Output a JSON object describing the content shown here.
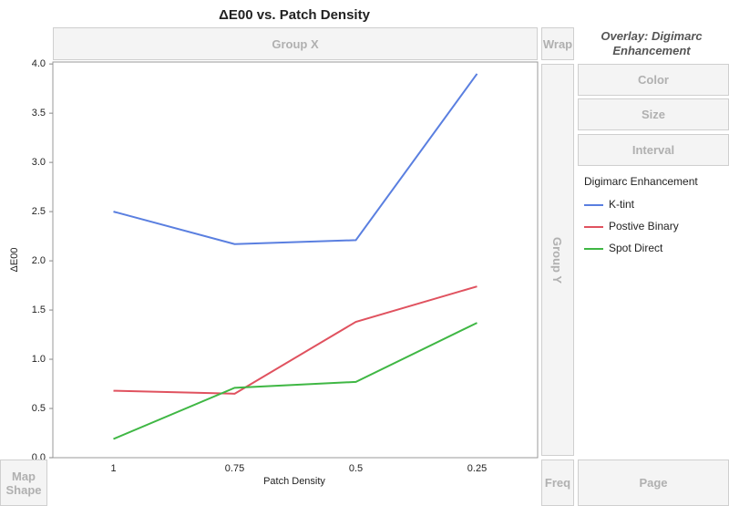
{
  "chart_data": {
    "type": "line",
    "title": "ΔE00 vs. Patch Density",
    "x_label": "Patch Density",
    "y_label": "ΔE00",
    "categories": [
      "1",
      "0.75",
      "0.5",
      "0.25"
    ],
    "series": [
      {
        "name": "K-tint",
        "color": "#5a7fe0",
        "values": [
          2.5,
          2.17,
          2.21,
          3.9
        ]
      },
      {
        "name": "Postive Binary",
        "color": "#e0525f",
        "values": [
          0.68,
          0.65,
          1.38,
          1.74
        ]
      },
      {
        "name": "Spot Direct",
        "color": "#3fb744",
        "values": [
          0.19,
          0.71,
          0.77,
          1.37
        ]
      }
    ],
    "legend_title": "Digimarc Enhancement",
    "ylim": [
      0,
      4.02
    ],
    "yticks": [
      {
        "value": 0,
        "label": "0.0"
      },
      {
        "value": 0.5,
        "label": "0.5"
      },
      {
        "value": 1,
        "label": "1.0"
      },
      {
        "value": 1.5,
        "label": "1.5"
      },
      {
        "value": 2,
        "label": "2.0"
      },
      {
        "value": 2.5,
        "label": "2.5"
      },
      {
        "value": 3,
        "label": "3.0"
      },
      {
        "value": 3.5,
        "label": "3.5"
      },
      {
        "value": 4,
        "label": "4.0"
      }
    ],
    "grid": false
  },
  "ui": {
    "group_x": "Group X",
    "wrap": "Wrap",
    "overlay": "Overlay: Digimarc Enhancement",
    "color": "Color",
    "size": "Size",
    "interval": "Interval",
    "group_y": "Group Y",
    "map_shape": "Map Shape",
    "freq": "Freq",
    "page": "Page"
  }
}
